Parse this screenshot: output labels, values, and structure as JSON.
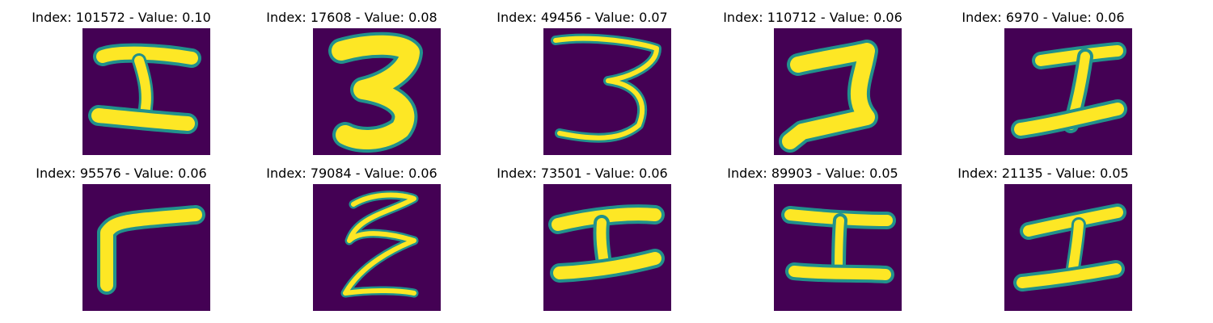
{
  "palette": {
    "background": "#440154",
    "mid": "#21918c",
    "foreground": "#fde725"
  },
  "panels": [
    {
      "title": "Index: 101572 - Value: 0.10",
      "glyph": "I-shape"
    },
    {
      "title": "Index: 17608 - Value: 0.08",
      "glyph": "3"
    },
    {
      "title": "Index: 49456 - Value: 0.07",
      "glyph": "3"
    },
    {
      "title": "Index: 110712 - Value: 0.06",
      "glyph": "2"
    },
    {
      "title": "Index: 6970 - Value: 0.06",
      "glyph": "I-shape"
    },
    {
      "title": "Index: 95576 - Value: 0.06",
      "glyph": "L-shape"
    },
    {
      "title": "Index: 79084 - Value: 0.06",
      "glyph": "Z-loop"
    },
    {
      "title": "Index: 73501 - Value: 0.06",
      "glyph": "I-shape"
    },
    {
      "title": "Index: 89903 - Value: 0.05",
      "glyph": "I-shape"
    },
    {
      "title": "Index: 21135 - Value: 0.05",
      "glyph": "I-shape"
    }
  ]
}
